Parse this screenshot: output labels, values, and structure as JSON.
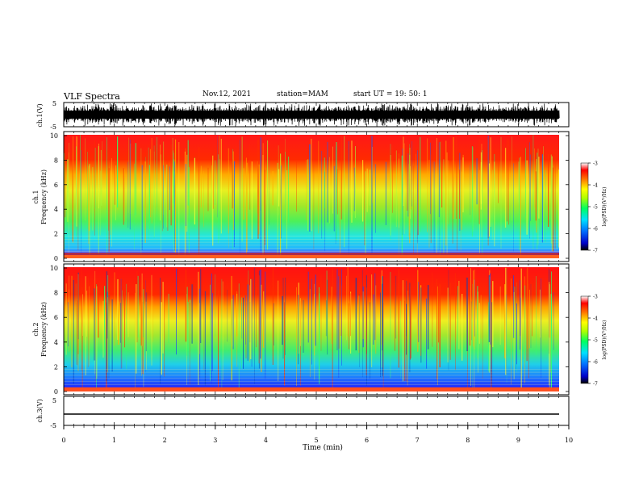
{
  "header": {
    "title": "VLF Spectra",
    "date": "Nov.12, 2021",
    "station": "station=MAM",
    "start_ut": "start UT =   19: 50: 1"
  },
  "chart_data": [
    {
      "type": "line",
      "panel": "ch1-waveform",
      "ylabel": "ch.1(V)",
      "ylim": [
        -5,
        5
      ],
      "yticks": [
        "5",
        "-5"
      ],
      "xlim": [
        0,
        10
      ],
      "description_values": {
        "signal": "dense impulsive waveform spanning full range"
      }
    },
    {
      "type": "heatmap",
      "panel": "ch1-spectrogram",
      "ylabel_top": "ch.1",
      "ylabel": "Frequency (kHz)",
      "ylim": [
        0,
        10
      ],
      "yticks": [
        "0",
        "2",
        "4",
        "6",
        "8",
        "10"
      ],
      "xlim": [
        0,
        9.85
      ],
      "colorbar": {
        "label": "log(PSD)(V²/Hz)",
        "range": [
          -7,
          -3
        ],
        "ticks": [
          "-3",
          "-4",
          "-5",
          "-6",
          "-7"
        ]
      }
    },
    {
      "type": "heatmap",
      "panel": "ch2-spectrogram",
      "ylabel_top": "ch.2",
      "ylabel": "Frequency (kHz)",
      "ylim": [
        0,
        10
      ],
      "yticks": [
        "0",
        "2",
        "4",
        "6",
        "8",
        "10"
      ],
      "xlim": [
        0,
        9.85
      ],
      "colorbar": {
        "label": "log(PSD)(V²/Hz)",
        "range": [
          -7,
          -3
        ],
        "ticks": [
          "-3",
          "-4",
          "-5",
          "-6",
          "-7"
        ]
      }
    },
    {
      "type": "line",
      "panel": "ch3-waveform",
      "ylabel": "ch.3(V)",
      "ylim": [
        -5,
        5
      ],
      "yticks": [
        "5",
        "-5"
      ],
      "xlim": [
        0,
        10
      ],
      "series": [
        {
          "x": [
            0,
            9.85
          ],
          "values": [
            -1.5,
            -1.5
          ]
        }
      ]
    }
  ],
  "xaxis": {
    "label": "Time (min)",
    "ticks": [
      "0",
      "1",
      "2",
      "3",
      "4",
      "5",
      "6",
      "7",
      "8",
      "9",
      "10"
    ],
    "range": [
      0,
      10
    ]
  }
}
